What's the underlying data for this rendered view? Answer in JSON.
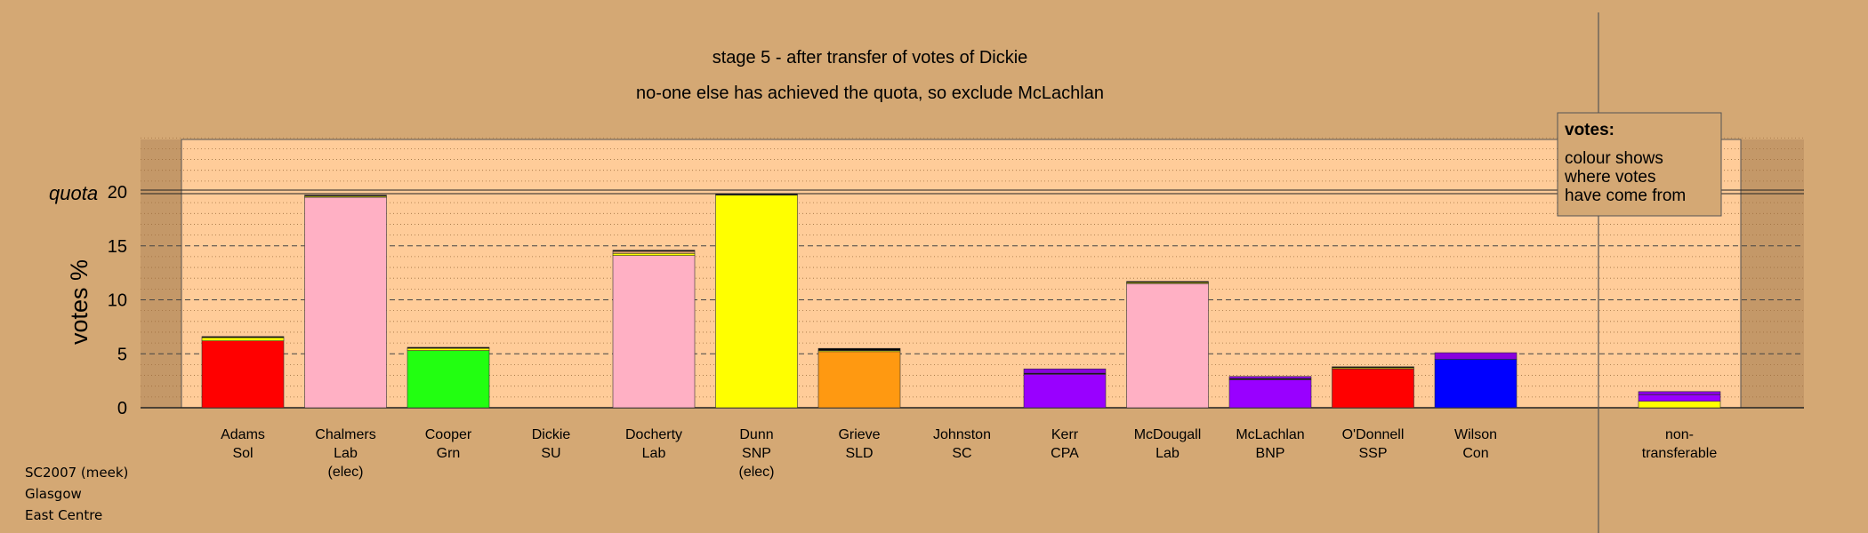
{
  "chart_data": {
    "type": "bar",
    "title": "stage 5 - after transfer of votes of Dickie",
    "subtitle": "no-one else has achieved the quota, so exclude McLachlan",
    "ylabel": "votes %",
    "quota_label": "quota",
    "quota": 20,
    "ylim": [
      0,
      25
    ],
    "yticks": [
      0,
      5,
      10,
      15,
      20
    ],
    "grid": true,
    "candidates": [
      {
        "name": "Adams",
        "party": "Sol",
        "note": "",
        "segments": [
          {
            "color": "#ff0000",
            "value": 6.2
          },
          {
            "color": "#ffff00",
            "value": 0.3
          },
          {
            "color": "#000000",
            "value": 0.1
          }
        ]
      },
      {
        "name": "Chalmers",
        "party": "Lab",
        "note": "(elec)",
        "segments": [
          {
            "color": "#ffb0c4",
            "value": 19.5
          },
          {
            "color": "#ffff00",
            "value": 0.1
          },
          {
            "color": "#000000",
            "value": 0.1
          }
        ]
      },
      {
        "name": "Cooper",
        "party": "Grn",
        "note": "",
        "segments": [
          {
            "color": "#22ff11",
            "value": 5.3
          },
          {
            "color": "#ffff00",
            "value": 0.2
          },
          {
            "color": "#000000",
            "value": 0.1
          }
        ]
      },
      {
        "name": "Dickie",
        "party": "SU",
        "note": "",
        "segments": []
      },
      {
        "name": "Docherty",
        "party": "Lab",
        "note": "",
        "segments": [
          {
            "color": "#ffb0c4",
            "value": 14.1
          },
          {
            "color": "#ffff00",
            "value": 0.2
          },
          {
            "color": "#e0a070",
            "value": 0.2
          },
          {
            "color": "#000000",
            "value": 0.1
          }
        ]
      },
      {
        "name": "Dunn",
        "party": "SNP",
        "note": "(elec)",
        "segments": [
          {
            "color": "#ffff00",
            "value": 19.7
          },
          {
            "color": "#000000",
            "value": 0.1
          }
        ]
      },
      {
        "name": "Grieve",
        "party": "SLD",
        "note": "",
        "segments": [
          {
            "color": "#ff9911",
            "value": 5.2
          },
          {
            "color": "#ffff00",
            "value": 0.1
          },
          {
            "color": "#000000",
            "value": 0.2
          }
        ]
      },
      {
        "name": "Johnston",
        "party": "SC",
        "note": "",
        "segments": []
      },
      {
        "name": "Kerr",
        "party": "CPA",
        "note": "",
        "segments": [
          {
            "color": "#9900ff",
            "value": 3.1
          },
          {
            "color": "#000000",
            "value": 0.1
          },
          {
            "color": "#8800dd",
            "value": 0.4
          }
        ]
      },
      {
        "name": "McDougall",
        "party": "Lab",
        "note": "",
        "segments": [
          {
            "color": "#ffb0c4",
            "value": 11.5
          },
          {
            "color": "#ffff00",
            "value": 0.1
          },
          {
            "color": "#000000",
            "value": 0.1
          }
        ]
      },
      {
        "name": "McLachlan",
        "party": "BNP",
        "note": "",
        "segments": [
          {
            "color": "#9900ff",
            "value": 2.6
          },
          {
            "color": "#000000",
            "value": 0.1
          },
          {
            "color": "#8800dd",
            "value": 0.2
          }
        ]
      },
      {
        "name": "O'Donnell",
        "party": "SSP",
        "note": "",
        "segments": [
          {
            "color": "#ff0000",
            "value": 3.6
          },
          {
            "color": "#ffff00",
            "value": 0.1
          },
          {
            "color": "#000000",
            "value": 0.1
          }
        ]
      },
      {
        "name": "Wilson",
        "party": "Con",
        "note": "",
        "segments": [
          {
            "color": "#0000ff",
            "value": 4.5
          },
          {
            "color": "#8800dd",
            "value": 0.6
          }
        ]
      }
    ],
    "nontransferable": {
      "name": "non-",
      "party": "transferable",
      "segments": [
        {
          "color": "#ffff00",
          "value": 0.6
        },
        {
          "color": "#9900ff",
          "value": 0.6
        },
        {
          "color": "#8800dd",
          "value": 0.3
        }
      ]
    },
    "legend": {
      "heading": "votes:",
      "lines": [
        "colour shows",
        "where votes",
        "have come from"
      ]
    }
  },
  "footer": {
    "line1": "SC2007 (meek)",
    "line2": "Glasgow",
    "line3": "East Centre"
  },
  "colors": {
    "background": "#d4a874",
    "plot_background": "#ffcc99",
    "grid": "#a07040"
  }
}
